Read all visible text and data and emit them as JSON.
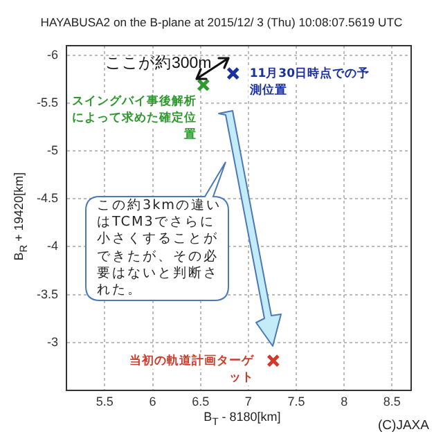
{
  "chart_data": {
    "type": "scatter",
    "title": "HAYABUSA2 on the B-plane at 2015/12/ 3 (Thu) 10:08:07.5619 UTC",
    "xlabel": "B$_{T}$ - 8180[km]",
    "ylabel": "B$_{R}$ + 19420[km]",
    "xlim": [
      5.1,
      8.7
    ],
    "xticks": [
      5.5,
      6,
      6.5,
      7,
      7.5,
      8,
      8.5
    ],
    "ylim": [
      -2.5,
      -6.1
    ],
    "yticks": [
      -6,
      -5.5,
      -5,
      -4.5,
      -4,
      -3.5,
      -3
    ],
    "grid": true,
    "legend": false,
    "marker": "cross",
    "series": [
      {
        "name": "11月30日時点での予測位置",
        "color": "#1a2fa0",
        "x": [
          6.84
        ],
        "values": [
          -5.81
        ]
      },
      {
        "name": "スイングバイ事後解析によって求めた確定位置",
        "color": "#2e9a2e",
        "x": [
          6.53
        ],
        "values": [
          -5.69
        ]
      },
      {
        "name": "当初の軌道計画ターゲット",
        "color": "#d03a2a",
        "x": [
          7.26
        ],
        "values": [
          -2.81
        ]
      }
    ],
    "annotations": [
      "ここが約300m",
      "この約3kmの違いはTCM3でさらに小さくすることができたが、その必要はないと判断された。",
      "(C)JAXA"
    ]
  }
}
